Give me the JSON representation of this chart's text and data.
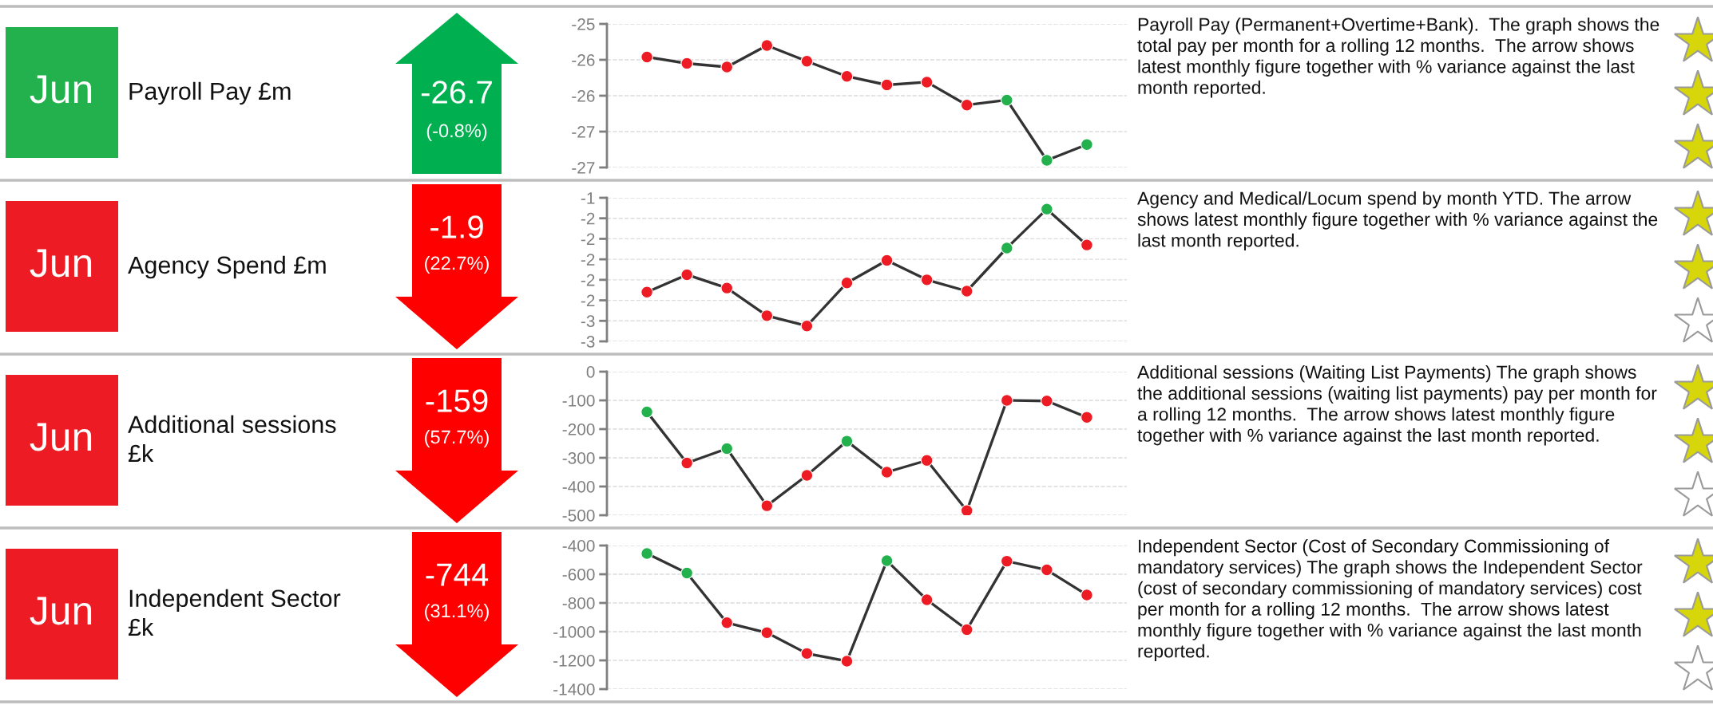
{
  "chart_data": [
    {
      "type": "other",
      "title": "Payroll Pay £m",
      "colors": [
        "#22b14c",
        "#00b050",
        "#d6d60a",
        "#d6d60a",
        "#d6d60a"
      ],
      "annotations": [
        "Jun",
        "-26.7",
        "(-0.8%)",
        "Payroll Pay (Permanent+Overtime+Bank).  The graph shows the total pay per month for a rolling 12 months.  The arrow shows latest monthly figure together with % variance against the last month reported."
      ]
    },
    {
      "type": "line",
      "categories": [
        null,
        null,
        null,
        null,
        null,
        null,
        null,
        null,
        null,
        null,
        null,
        null
      ],
      "tick_labels": "y",
      "grid": "y",
      "marker": "circle",
      "line_style": "solid",
      "ylim": [
        -27,
        -25
      ],
      "yticks": [
        -25,
        {
          "value": -25.5,
          "label": "-26"
        },
        -26,
        {
          "value": -26.5,
          "label": "-27"
        },
        -27
      ],
      "series": [
        {
          "color": "#333333",
          "values": [
            -25.46,
            -25.55,
            -25.6,
            -25.3,
            -25.52,
            -25.73,
            -25.85,
            -25.81,
            -26.13,
            -26.06,
            -26.9,
            -26.68
          ],
          "colors": [
            "#ed1c24",
            "#ed1c24",
            "#ed1c24",
            "#ed1c24",
            "#ed1c24",
            "#ed1c24",
            "#ed1c24",
            "#ed1c24",
            "#ed1c24",
            "#22b14c",
            "#22b14c",
            "#22b14c"
          ]
        }
      ]
    },
    {
      "type": "other",
      "title": "Agency Spend £m",
      "colors": [
        "#ed1c24",
        "#ff0000",
        "#d6d60a",
        "#d6d60a",
        "#ffffff"
      ],
      "annotations": [
        "Jun",
        "-1.9",
        "(22.7%)",
        "Agency and Medical/Locum spend by month YTD. The arrow shows latest monthly figure together with % variance against the last month reported."
      ]
    },
    {
      "type": "line",
      "categories": [
        null,
        null,
        null,
        null,
        null,
        null,
        null,
        null,
        null,
        null,
        null,
        null
      ],
      "tick_labels": "y",
      "grid": "y",
      "marker": "circle",
      "line_style": "solid",
      "ylim": [
        -2.8,
        -1.4
      ],
      "yticks": [
        {
          "value": -1.4,
          "label": "-1"
        },
        {
          "value": -1.6,
          "label": "-2"
        },
        {
          "value": -1.8,
          "label": "-2"
        },
        -2,
        {
          "value": -2.2,
          "label": "-2"
        },
        {
          "value": -2.4,
          "label": "-2"
        },
        {
          "value": -2.6,
          "label": "-3"
        },
        {
          "value": -2.8,
          "label": "-3"
        }
      ],
      "series": [
        {
          "color": "#333333",
          "values": [
            -2.32,
            -2.15,
            -2.28,
            -2.55,
            -2.65,
            -2.23,
            -2.01,
            -2.2,
            -2.31,
            -1.89,
            -1.51,
            -1.86
          ],
          "colors": [
            "#ed1c24",
            "#ed1c24",
            "#ed1c24",
            "#ed1c24",
            "#ed1c24",
            "#ed1c24",
            "#ed1c24",
            "#ed1c24",
            "#ed1c24",
            "#22b14c",
            "#22b14c",
            "#ed1c24"
          ]
        }
      ]
    },
    {
      "type": "other",
      "title": "Additional sessions £k",
      "colors": [
        "#ed1c24",
        "#ff0000",
        "#d6d60a",
        "#d6d60a",
        "#ffffff"
      ],
      "annotations": [
        "Jun",
        "-159",
        "(57.7%)",
        "Additional sessions (Waiting List Payments) The graph shows the additional sessions (waiting list payments) pay per month for a rolling 12 months.  The arrow shows latest monthly figure together with % variance against the last month reported."
      ]
    },
    {
      "type": "line",
      "categories": [
        null,
        null,
        null,
        null,
        null,
        null,
        null,
        null,
        null,
        null,
        null,
        null
      ],
      "tick_labels": "y",
      "grid": "y",
      "marker": "circle",
      "line_style": "solid",
      "ylim": [
        -500,
        0
      ],
      "yticks": [
        0,
        -100,
        -200,
        -300,
        -400,
        -500
      ],
      "series": [
        {
          "color": "#333333",
          "values": [
            -140,
            -318,
            -268,
            -467,
            -361,
            -242,
            -350,
            -309,
            -484,
            -100,
            -102,
            -159
          ],
          "colors": [
            "#22b14c",
            "#ed1c24",
            "#22b14c",
            "#ed1c24",
            "#ed1c24",
            "#22b14c",
            "#ed1c24",
            "#ed1c24",
            "#ed1c24",
            "#ed1c24",
            "#ed1c24",
            "#ed1c24"
          ]
        }
      ]
    },
    {
      "type": "other",
      "title": "Independent Sector £k",
      "colors": [
        "#ed1c24",
        "#ff0000",
        "#d6d60a",
        "#d6d60a",
        "#ffffff"
      ],
      "annotations": [
        "Jun",
        "-744",
        "(31.1%)",
        "Independent Sector (Cost of Secondary Commissioning of mandatory services) The graph shows the Independent Sector (cost of secondary commissioning of mandatory services) cost per month for a rolling 12 months.  The arrow shows latest monthly figure together with % variance against the last month reported."
      ]
    },
    {
      "type": "line",
      "categories": [
        null,
        null,
        null,
        null,
        null,
        null,
        null,
        null,
        null,
        null,
        null,
        null
      ],
      "tick_labels": "y",
      "grid": "y",
      "marker": "circle",
      "line_style": "solid",
      "ylim": [
        -1400,
        -400
      ],
      "yticks": [
        -400,
        -600,
        -800,
        -1000,
        -1200,
        -1400
      ],
      "series": [
        {
          "color": "#333333",
          "values": [
            -455,
            -592,
            -938,
            -1007,
            -1152,
            -1205,
            -506,
            -778,
            -986,
            -509,
            -570,
            -744
          ],
          "colors": [
            "#22b14c",
            "#22b14c",
            "#ed1c24",
            "#ed1c24",
            "#ed1c24",
            "#ed1c24",
            "#22b14c",
            "#ed1c24",
            "#ed1c24",
            "#ed1c24",
            "#ed1c24",
            "#ed1c24"
          ]
        }
      ]
    }
  ]
}
